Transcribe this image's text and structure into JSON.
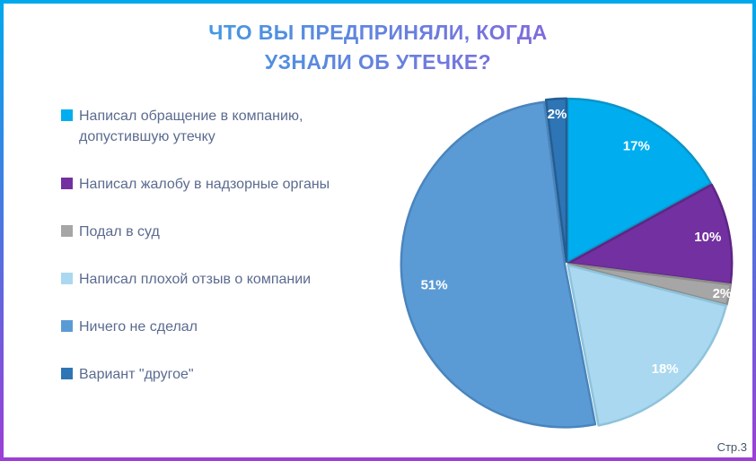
{
  "page": {
    "title_line1": "ЧТО ВЫ ПРЕДПРИНЯЛИ, КОГДА",
    "title_line2": "УЗНАЛИ ОБ УТЕЧКЕ?",
    "footer": "Стр.3"
  },
  "theme": {
    "border_gradient_start": "#00A9EC",
    "border_gradient_end": "#9C3FD6",
    "title_gradient_start": "#29ABE2",
    "title_gradient_end": "#9A4FD6",
    "legend_text_color": "#5B6B8F",
    "footer_color": "#44546A",
    "slice_label_color": "#FFFFFF"
  },
  "chart_data": {
    "type": "pie",
    "title": "ЧТО ВЫ ПРЕДПРИНЯЛИ, КОГДА УЗНАЛИ ОБ УТЕЧКЕ?",
    "legend_position": "left",
    "start_angle_deg": 0,
    "direction": "clockwise",
    "slices": [
      {
        "label": "Написал обращение в компанию, допустившую утечку",
        "value": 17,
        "display": "17%",
        "color": "#00AEEF",
        "border": "#0D93C8"
      },
      {
        "label": "Написал жалобу в надзорные органы",
        "value": 10,
        "display": "10%",
        "color": "#7330A0",
        "border": "#5E2684"
      },
      {
        "label": "Подал в суд",
        "value": 2,
        "display": "2%",
        "color": "#A6A6A6",
        "border": "#8C8C8C"
      },
      {
        "label": "Написал плохой отзыв о компании",
        "value": 18,
        "display": "18%",
        "color": "#A9D8F0",
        "border": "#8EC3DC"
      },
      {
        "label": "Ничего не сделал",
        "value": 51,
        "display": "51%",
        "color": "#5B9BD5",
        "border": "#4A85BD"
      },
      {
        "label": "Вариант \"другое\"",
        "value": 2,
        "display": "2%",
        "color": "#2E75B6",
        "border": "#245D92"
      }
    ]
  }
}
